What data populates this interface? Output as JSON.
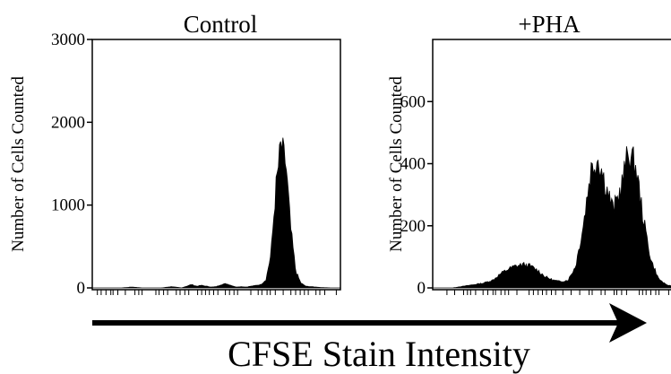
{
  "chart_data": [
    {
      "type": "histogram",
      "title": "Control",
      "ylabel": "Number of Cells Counted",
      "ylim": [
        0,
        3000
      ],
      "yticks": [
        0,
        1000,
        2000,
        3000
      ],
      "x": [
        0.0,
        0.04,
        0.08,
        0.12,
        0.16,
        0.2,
        0.24,
        0.28,
        0.32,
        0.36,
        0.4,
        0.42,
        0.44,
        0.46,
        0.48,
        0.5,
        0.52,
        0.54,
        0.56,
        0.58,
        0.6,
        0.62,
        0.64,
        0.66,
        0.68,
        0.7,
        0.72,
        0.74,
        0.76,
        0.78,
        0.8,
        0.82,
        0.84,
        0.86,
        0.88,
        0.9,
        0.92,
        0.96,
        1.0
      ],
      "counts": [
        0,
        0,
        0,
        0,
        10,
        0,
        0,
        0,
        15,
        0,
        40,
        20,
        30,
        20,
        10,
        15,
        40,
        50,
        30,
        10,
        15,
        10,
        20,
        30,
        40,
        100,
        400,
        1200,
        1720,
        1500,
        700,
        200,
        60,
        20,
        15,
        10,
        5,
        0,
        0
      ]
    },
    {
      "type": "histogram",
      "title": "+PHA",
      "ylabel": "Number of Cells Counted",
      "ylim": [
        0,
        800
      ],
      "yticks": [
        0,
        200,
        400,
        600
      ],
      "x": [
        0.0,
        0.04,
        0.08,
        0.12,
        0.16,
        0.2,
        0.24,
        0.27,
        0.3,
        0.33,
        0.36,
        0.39,
        0.42,
        0.45,
        0.48,
        0.51,
        0.54,
        0.57,
        0.6,
        0.63,
        0.66,
        0.69,
        0.72,
        0.75,
        0.78,
        0.81,
        0.84,
        0.87,
        0.9,
        0.93,
        0.96,
        1.0
      ],
      "counts": [
        0,
        0,
        0,
        5,
        10,
        15,
        25,
        45,
        60,
        70,
        75,
        70,
        55,
        35,
        25,
        20,
        25,
        70,
        200,
        380,
        420,
        330,
        250,
        320,
        440,
        390,
        220,
        90,
        30,
        10,
        5,
        0
      ]
    }
  ],
  "xlabel": "CFSE Stain Intensity",
  "colors": {
    "fill": "#000000",
    "axis": "#000000",
    "background": "#ffffff"
  },
  "icons": {
    "arrow": "right-arrow-icon"
  }
}
